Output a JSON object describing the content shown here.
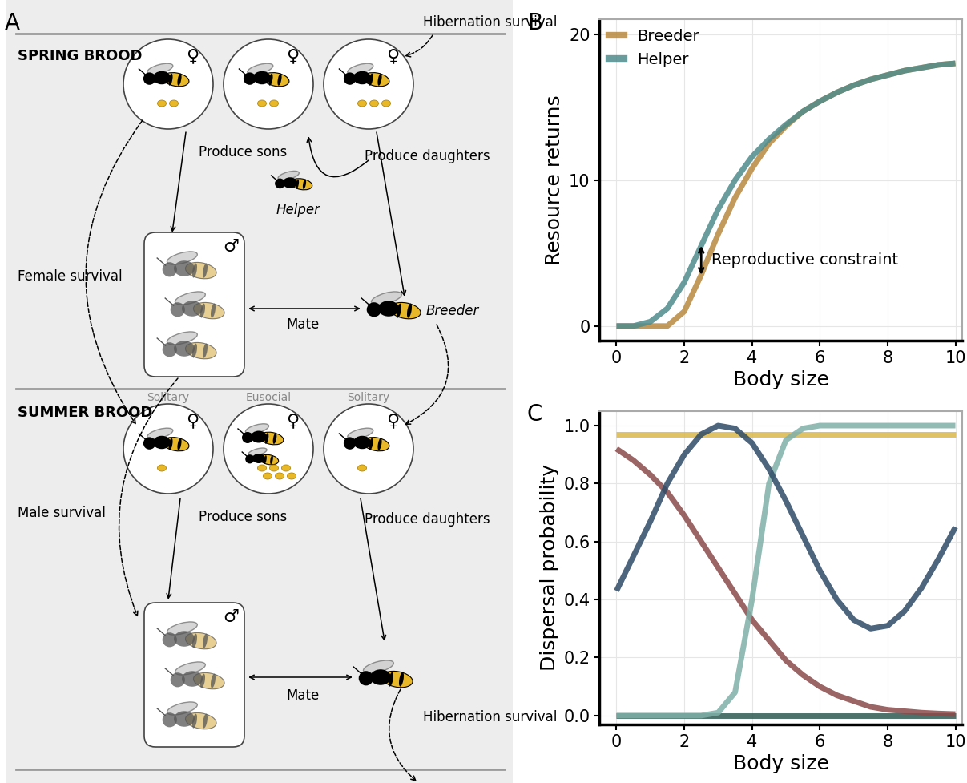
{
  "diagram": {
    "panel": "A",
    "female_symbol": "♀",
    "male_symbol": "♂",
    "spring": {
      "title": "SPRING BROOD",
      "inflow": "Hibernation survival",
      "egg_counts": [
        2,
        2,
        3
      ],
      "left_edge": "Produce sons",
      "right_edge": "Produce daughters",
      "helper": "Helper",
      "breeder": "Breeder",
      "mate": "Mate",
      "female_carry": "Female survival",
      "male_carry": "Male survival"
    },
    "summer": {
      "title": "SUMMER BROOD",
      "nest_types": [
        "Solitary",
        "Eusocial",
        "Solitary"
      ],
      "egg_counts": [
        1,
        6,
        1
      ],
      "left_edge": "Produce sons",
      "right_edge": "Produce daughters",
      "mate": "Mate",
      "outflow": "Hibernation survival"
    }
  },
  "chart_data": [
    {
      "panel": "B",
      "type": "line",
      "xlabel": "Body size",
      "ylabel": "Resource returns",
      "x": [
        0,
        0.5,
        1,
        1.5,
        2,
        2.5,
        3,
        3.5,
        4,
        4.5,
        5,
        5.5,
        6,
        6.5,
        7,
        7.5,
        8,
        8.5,
        9,
        9.5,
        10
      ],
      "series": [
        {
          "name": "Breeder",
          "color": "#b8893e",
          "values": [
            0,
            0,
            0,
            0,
            1.0,
            3.5,
            6.3,
            8.8,
            10.8,
            12.5,
            13.7,
            14.7,
            15.4,
            16.0,
            16.5,
            16.9,
            17.2,
            17.5,
            17.7,
            17.9,
            18.0
          ]
        },
        {
          "name": "Helper",
          "color": "#4f8c8c",
          "values": [
            0,
            0,
            0.3,
            1.2,
            3.0,
            5.5,
            8.0,
            10.0,
            11.6,
            12.8,
            13.8,
            14.7,
            15.4,
            16.0,
            16.5,
            16.9,
            17.2,
            17.5,
            17.7,
            17.9,
            18.0
          ]
        }
      ],
      "xlim": [
        -0.5,
        10.2
      ],
      "ylim": [
        -1,
        21
      ],
      "xticks": [
        0,
        2,
        4,
        6,
        8,
        10
      ],
      "yticks": [
        0,
        10,
        20
      ],
      "grid": true,
      "legend": "upper left",
      "annotation": {
        "text": "Reproductive constraint",
        "x": 2.5
      }
    },
    {
      "panel": "C",
      "type": "line",
      "xlabel": "Body size",
      "ylabel": "Dispersal probability",
      "x": [
        0,
        0.5,
        1,
        1.5,
        2,
        2.5,
        3,
        3.5,
        4,
        4.5,
        5,
        5.5,
        6,
        6.5,
        7,
        7.5,
        8,
        8.5,
        9,
        9.5,
        10
      ],
      "series": [
        {
          "color": "#d9b84a",
          "values": [
            0.97,
            0.97,
            0.97,
            0.97,
            0.97,
            0.97,
            0.97,
            0.97,
            0.97,
            0.97,
            0.97,
            0.97,
            0.97,
            0.97,
            0.97,
            0.97,
            0.97,
            0.97,
            0.97,
            0.97,
            0.97
          ]
        },
        {
          "color": "#2d5a52",
          "values": [
            0,
            0,
            0,
            0,
            0,
            0,
            0,
            0,
            0,
            0,
            0,
            0,
            0,
            0,
            0,
            0,
            0,
            0,
            0,
            0,
            0
          ]
        },
        {
          "color": "#8a4a4a",
          "values": [
            0.92,
            0.88,
            0.83,
            0.77,
            0.69,
            0.6,
            0.51,
            0.42,
            0.33,
            0.26,
            0.19,
            0.14,
            0.1,
            0.07,
            0.05,
            0.03,
            0.02,
            0.015,
            0.01,
            0.007,
            0.005
          ]
        },
        {
          "color": "#7fb0a8",
          "values": [
            0,
            0,
            0,
            0,
            0,
            0,
            0.01,
            0.08,
            0.4,
            0.8,
            0.95,
            0.99,
            1.0,
            1.0,
            1.0,
            1.0,
            1.0,
            1.0,
            1.0,
            1.0,
            1.0
          ]
        },
        {
          "color": "#2e4a66",
          "values": [
            0.43,
            0.55,
            0.67,
            0.8,
            0.9,
            0.97,
            1.0,
            0.99,
            0.94,
            0.85,
            0.74,
            0.62,
            0.5,
            0.4,
            0.33,
            0.3,
            0.31,
            0.36,
            0.44,
            0.54,
            0.65
          ]
        }
      ],
      "xlim": [
        -0.5,
        10.2
      ],
      "ylim": [
        -0.03,
        1.05
      ],
      "xticks": [
        0,
        2,
        4,
        6,
        8,
        10
      ],
      "yticks": [
        0.0,
        0.2,
        0.4,
        0.6,
        0.8,
        1.0
      ],
      "grid": true
    }
  ]
}
